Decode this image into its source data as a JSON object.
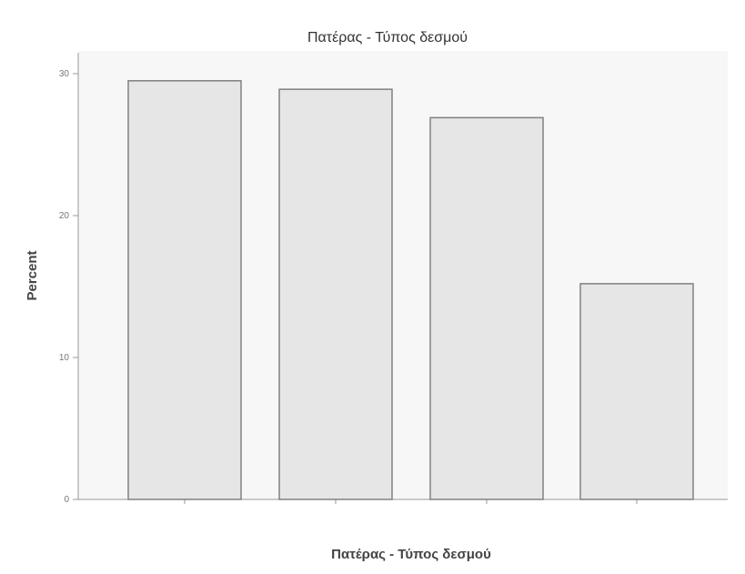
{
  "chart_data": {
    "type": "bar",
    "title": "Πατέρας - Τύπος δεσμού",
    "xlabel": "Πατέρας - Τύπος δεσμού",
    "ylabel": "Percent",
    "categories": [
      "",
      "",
      "",
      ""
    ],
    "values": [
      29.5,
      28.9,
      26.9,
      15.2
    ],
    "ylim": [
      0,
      30
    ],
    "yticks": [
      0,
      10,
      20,
      30
    ],
    "ytick_labels": [
      "0",
      "10",
      "20",
      "30"
    ],
    "grid": false,
    "legend": "none",
    "colors": {
      "bar_fill": "#e6e6e6",
      "bar_stroke": "#808080",
      "plot_bg": "#f7f7f7",
      "axis": "#9a9a9a"
    }
  }
}
